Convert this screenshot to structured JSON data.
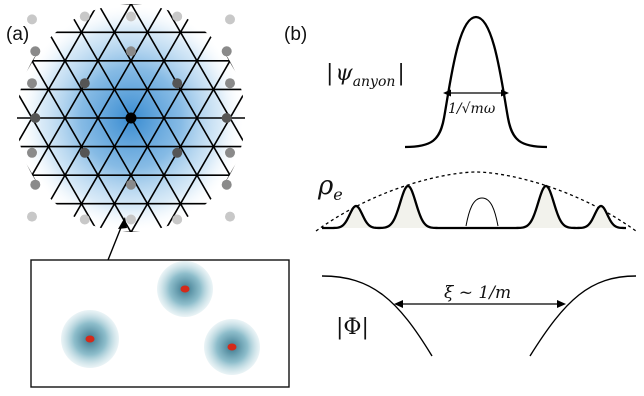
{
  "panels": {
    "a": {
      "label": "(a)"
    },
    "b": {
      "label": "(b)"
    }
  },
  "colors": {
    "lattice_line": "#000000",
    "glow_blue": "#3a8fd0",
    "central_site": "#000000",
    "inner_site": "#555555",
    "mid_site": "#8a8a8a",
    "outer_site": "#c8c8c8",
    "anyon_glow": "#6fa6b3",
    "anyon_core": "#d42a1a"
  },
  "anyon_panel": {
    "label_prefix": "|",
    "label_symbol": "ψ",
    "label_sub": "anyon",
    "label_suffix": "|",
    "width_label": "1/√mω"
  },
  "density_panel": {
    "label_symbol": "ρ",
    "label_sub": "e"
  },
  "order_panel": {
    "label": "|Φ|",
    "length_label": "ξ ~ 1/m"
  }
}
